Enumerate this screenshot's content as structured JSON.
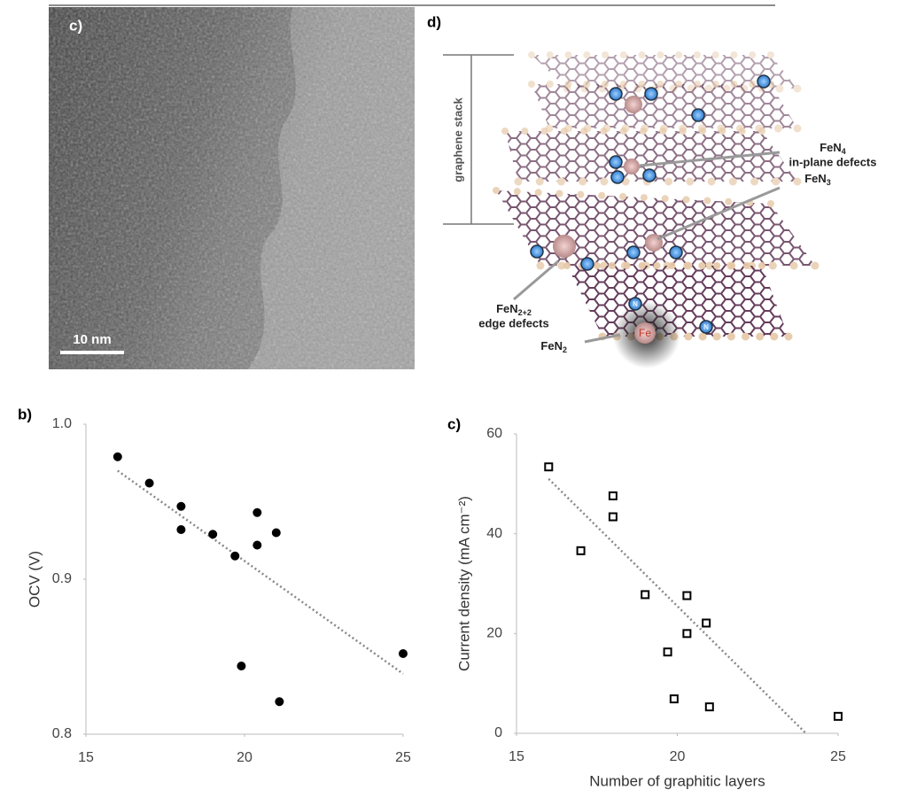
{
  "panels": {
    "tem_label": "c)",
    "scale_bar": "10 nm",
    "diagram_label": "d)"
  },
  "diagram": {
    "stack_label": "graphene stack",
    "labels": [
      {
        "base": "FeN",
        "sub": "4",
        "line2": "in-plane defects"
      },
      {
        "base": "FeN",
        "sub": "3"
      },
      {
        "base": "FeN",
        "sub": "2+2",
        "line2": "edge defects"
      },
      {
        "base": "FeN",
        "sub": "2"
      }
    ],
    "atom": "Fe",
    "nitrogen": "N"
  },
  "chart_data": [
    {
      "type": "scatter",
      "panel_label": "b)",
      "y_label": "OCV (V)",
      "xlim": [
        15,
        25
      ],
      "xticks": [
        15,
        20,
        25
      ],
      "ylim": [
        0.8,
        1.0
      ],
      "yticks": [
        0.8,
        0.9,
        {
          "value": 1.0,
          "label": "1.0"
        }
      ],
      "marker": "circle",
      "color": "#000000",
      "x": [
        16,
        17,
        18,
        18,
        19,
        19.7,
        20.4,
        20.4,
        21,
        19.9,
        21.1,
        25
      ],
      "values": [
        0.979,
        0.962,
        0.947,
        0.932,
        0.929,
        0.915,
        0.943,
        0.922,
        0.93,
        0.844,
        0.821,
        0.852
      ],
      "trendline": {
        "x": [
          16,
          25
        ],
        "values": [
          0.97,
          0.839
        ],
        "color": "#888888"
      }
    },
    {
      "type": "scatter",
      "panel_label": "c)",
      "y_label": "Current density (mA cm⁻²)",
      "x_label": "Number of graphitic layers",
      "xlim": [
        15,
        25
      ],
      "xticks": [
        15,
        20,
        25
      ],
      "ylim": [
        0,
        60
      ],
      "yticks": [
        0,
        20,
        40,
        60
      ],
      "marker": "square-open",
      "color": "#000000",
      "x": [
        16,
        17,
        18,
        18,
        19,
        19.7,
        20.3,
        20.3,
        20.9,
        19.9,
        21,
        25
      ],
      "values": [
        53.4,
        36.6,
        47.6,
        43.4,
        27.8,
        16.3,
        27.6,
        20.0,
        22.1,
        6.9,
        5.3,
        3.4
      ],
      "trendline": {
        "x": [
          16,
          24
        ],
        "values": [
          51,
          0
        ],
        "color": "#888888"
      }
    }
  ]
}
